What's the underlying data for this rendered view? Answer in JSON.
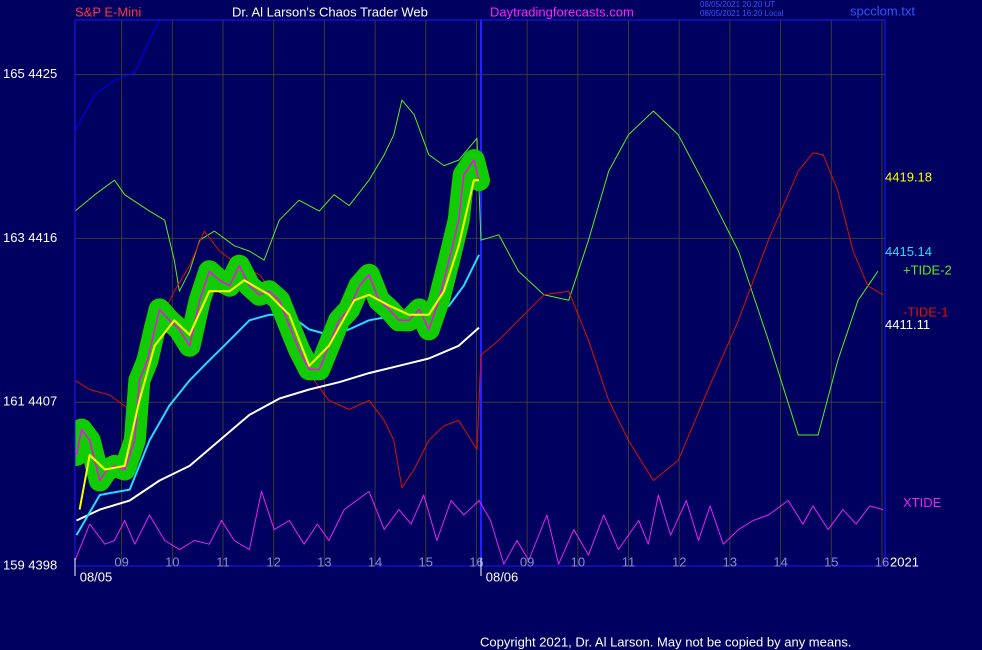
{
  "chart_data": {
    "type": "line",
    "header": {
      "symbol": "S&P E-Mini",
      "title": "Dr. Al Larson's Chaos Trader Web",
      "site": "Daytradingforecasts.com",
      "time_ut": "08/05/2021 20:20 UT",
      "time_local": "08/05/2021 16:20 Local",
      "file": "spcclom.txt"
    },
    "copyright": "Copyright 2021, Dr. Al Larson. May not be copied by any means.",
    "year_label": "2021",
    "ylim": [
      4398,
      4428
    ],
    "yticks": [
      {
        "value": 4398,
        "label": "159 4398"
      },
      {
        "value": 4407,
        "label": "161 4407"
      },
      {
        "value": 4416,
        "label": "163 4416"
      },
      {
        "value": 4425,
        "label": "165 4425"
      }
    ],
    "xlim": [
      0.08,
      16.06
    ],
    "xticks": [
      {
        "value": 1,
        "label": "09"
      },
      {
        "value": 2,
        "label": "10"
      },
      {
        "value": 3,
        "label": "11"
      },
      {
        "value": 4,
        "label": "12"
      },
      {
        "value": 5,
        "label": "13"
      },
      {
        "value": 6,
        "label": "14"
      },
      {
        "value": 7,
        "label": "15"
      },
      {
        "value": 8,
        "label": "16"
      },
      {
        "value": 9,
        "label": "09"
      },
      {
        "value": 10,
        "label": "10"
      },
      {
        "value": 11,
        "label": "11"
      },
      {
        "value": 12,
        "label": "12"
      },
      {
        "value": 13,
        "label": "13"
      },
      {
        "value": 14,
        "label": "14"
      },
      {
        "value": 15,
        "label": "15"
      },
      {
        "value": 16,
        "label": "16"
      }
    ],
    "date_labels": [
      {
        "value": 0.08,
        "label": "08/05"
      },
      {
        "value": 8.09,
        "label": "08/06"
      }
    ],
    "divider_x": 8.09,
    "grid": true,
    "series": [
      {
        "name": "+TIDE-2",
        "color": "#55ee22",
        "x": [
          0.08,
          0.47,
          0.86,
          1.06,
          1.55,
          1.85,
          2.04,
          2.14,
          2.34,
          2.54,
          2.83,
          3.22,
          3.52,
          3.81,
          4.11,
          4.5,
          4.9,
          5.19,
          5.49,
          5.88,
          6.18,
          6.37,
          6.53,
          6.77,
          7.06,
          7.36,
          7.65,
          8.01,
          8.09,
          8.44,
          8.83,
          9.33,
          9.82,
          10.21,
          10.61,
          11.0,
          11.49,
          11.98,
          12.57,
          13.17,
          13.76,
          14.35,
          14.74,
          15.13,
          15.53,
          15.92
        ],
        "values": [
          4417.5,
          4418.4,
          4419.2,
          4418.4,
          4417.5,
          4417.0,
          4414.8,
          4413.1,
          4414.2,
          4415.9,
          4416.4,
          4415.6,
          4415.3,
          4414.8,
          4417.0,
          4418.1,
          4417.5,
          4418.4,
          4417.8,
          4419.2,
          4420.6,
          4421.7,
          4423.6,
          4422.8,
          4420.6,
          4420.0,
          4420.3,
          4421.5,
          4415.9,
          4416.2,
          4414.2,
          4412.9,
          4412.6,
          4415.9,
          4419.7,
          4421.7,
          4423.0,
          4421.7,
          4418.6,
          4415.3,
          4410.4,
          4405.2,
          4405.2,
          4409.3,
          4412.6,
          4414.2
        ]
      },
      {
        "name": "-TIDE-1",
        "color": "#dd1100",
        "x": [
          0.08,
          0.37,
          0.76,
          1.16,
          1.45,
          1.75,
          2.04,
          2.34,
          2.63,
          2.93,
          3.32,
          3.72,
          4.11,
          4.5,
          4.8,
          5.09,
          5.49,
          5.88,
          6.18,
          6.37,
          6.53,
          6.77,
          7.06,
          7.36,
          7.65,
          8.01,
          8.09,
          8.44,
          8.83,
          9.33,
          9.82,
          10.21,
          10.61,
          11.0,
          11.49,
          11.98,
          12.57,
          13.17,
          13.76,
          14.35,
          14.64,
          14.84,
          15.13,
          15.43,
          15.72,
          16.02
        ],
        "values": [
          4408.2,
          4407.7,
          4407.4,
          4406.6,
          4408.2,
          4411.5,
          4413.1,
          4414.5,
          4416.4,
          4415.3,
          4414.5,
          4414.0,
          4412.6,
          4411.0,
          4408.2,
          4407.1,
          4406.6,
          4407.1,
          4406.0,
          4404.9,
          4402.3,
          4403.3,
          4404.9,
          4405.7,
          4406.0,
          4404.4,
          4409.6,
          4410.4,
          4411.5,
          4412.9,
          4413.1,
          4410.4,
          4407.1,
          4404.9,
          4402.7,
          4403.8,
          4407.7,
          4411.5,
          4415.9,
          4419.7,
          4420.7,
          4420.6,
          4418.6,
          4415.3,
          4413.4,
          4412.9
        ]
      },
      {
        "color": "#0000ff",
        "x": [
          0.08,
          0.47,
          0.86,
          1.26,
          1.55,
          1.75
        ],
        "values": [
          4421.9,
          4423.9,
          4424.7,
          4425.1,
          4426.9,
          4428.0
        ]
      },
      {
        "name": "XTIDE",
        "color": "#ee22ee",
        "x": [
          0.08,
          0.37,
          0.67,
          0.86,
          1.06,
          1.26,
          1.55,
          1.85,
          2.14,
          2.44,
          2.73,
          2.97,
          3.22,
          3.52,
          3.76,
          4.01,
          4.31,
          4.6,
          4.86,
          5.09,
          5.39,
          5.88,
          6.18,
          6.47,
          6.71,
          6.96,
          7.22,
          7.5,
          7.75,
          8.05,
          8.28,
          8.54,
          8.8,
          9.03,
          9.39,
          9.62,
          9.92,
          10.21,
          10.51,
          10.8,
          11.2,
          11.39,
          11.59,
          11.83,
          12.14,
          12.38,
          12.61,
          12.87,
          13.17,
          13.46,
          13.76,
          14.15,
          14.44,
          14.64,
          14.94,
          15.23,
          15.49,
          15.76,
          16.02
        ],
        "values": [
          4398.3,
          4400.3,
          4399.2,
          4399.4,
          4400.5,
          4399.2,
          4400.8,
          4399.4,
          4398.9,
          4399.4,
          4399.2,
          4400.5,
          4399.4,
          4398.9,
          4402.1,
          4400.0,
          4400.5,
          4399.2,
          4400.3,
          4399.4,
          4401.1,
          4402.1,
          4400.0,
          4401.1,
          4400.3,
          4401.9,
          4399.4,
          4401.6,
          4400.8,
          4401.6,
          4400.5,
          4398.1,
          4399.4,
          4398.3,
          4400.8,
          4398.1,
          4400.0,
          4398.6,
          4400.8,
          4398.9,
          4400.5,
          4399.2,
          4401.9,
          4399.7,
          4401.6,
          4399.4,
          4401.3,
          4399.2,
          4400.0,
          4400.5,
          4400.8,
          4401.6,
          4400.3,
          4401.3,
          4400.0,
          4401.1,
          4400.3,
          4401.3,
          4401.1
        ]
      },
      {
        "color": "#ffffff",
        "end_label": "4411.11",
        "x": [
          0.11,
          0.57,
          1.16,
          1.75,
          2.34,
          2.93,
          3.52,
          4.11,
          4.7,
          5.29,
          5.88,
          6.47,
          7.06,
          7.65,
          8.05
        ],
        "values": [
          4400.5,
          4401.1,
          4401.6,
          4402.7,
          4403.5,
          4404.9,
          4406.3,
          4407.2,
          4407.7,
          4408.1,
          4408.6,
          4409.0,
          4409.4,
          4410.1,
          4411.1
        ]
      },
      {
        "color": "#22ddff",
        "end_label": "4415.14",
        "x": [
          0.11,
          0.57,
          1.16,
          1.55,
          1.94,
          2.34,
          2.73,
          3.13,
          3.52,
          3.91,
          4.31,
          4.7,
          5.09,
          5.49,
          5.88,
          6.47,
          7.06,
          7.46,
          7.75,
          8.05
        ],
        "values": [
          4399.7,
          4401.9,
          4402.2,
          4404.9,
          4406.8,
          4408.2,
          4409.3,
          4410.4,
          4411.5,
          4411.8,
          4411.8,
          4411.0,
          4410.7,
          4411.0,
          4411.5,
          4411.8,
          4411.6,
          4412.3,
          4413.4,
          4415.1
        ]
      },
      {
        "color": "#ff00ff",
        "glow": "#11cc00",
        "x": [
          0.11,
          0.21,
          0.37,
          0.57,
          0.72,
          0.86,
          1.06,
          1.26,
          1.35,
          1.51,
          1.65,
          1.75,
          1.94,
          2.14,
          2.34,
          2.54,
          2.73,
          2.93,
          3.13,
          3.32,
          3.52,
          3.72,
          3.91,
          4.11,
          4.31,
          4.5,
          4.7,
          4.9,
          5.09,
          5.29,
          5.49,
          5.69,
          5.88,
          6.08,
          6.28,
          6.47,
          6.67,
          6.87,
          7.06,
          7.26,
          7.46,
          7.65,
          7.75,
          7.95,
          8.05
        ],
        "values": [
          4404.1,
          4405.5,
          4404.9,
          4402.7,
          4403.3,
          4403.5,
          4403.3,
          4404.9,
          4408.2,
          4409.3,
          4411.0,
          4412.1,
          4411.5,
          4411.0,
          4410.1,
          4412.6,
          4414.2,
          4413.7,
          4413.4,
          4414.5,
          4413.4,
          4412.9,
          4413.1,
          4412.6,
          4411.2,
          4409.9,
          4408.8,
          4408.8,
          4410.1,
          4411.5,
          4412.1,
          4413.4,
          4414.0,
          4412.6,
          4412.1,
          4411.5,
          4411.5,
          4412.1,
          4411.0,
          4412.6,
          4414.8,
          4417.0,
          4419.5,
          4420.3,
          4419.2
        ]
      },
      {
        "color": "#ffff00",
        "end_label": "4419.18",
        "x": [
          0.17,
          0.37,
          0.67,
          1.06,
          1.35,
          1.65,
          2.04,
          2.34,
          2.73,
          3.13,
          3.42,
          3.91,
          4.31,
          4.7,
          5.09,
          5.59,
          5.88,
          6.28,
          6.67,
          7.06,
          7.36,
          7.65,
          7.95,
          8.05
        ],
        "values": [
          4401.1,
          4404.1,
          4403.3,
          4403.5,
          4407.1,
          4410.1,
          4411.5,
          4410.7,
          4413.1,
          4413.1,
          4413.7,
          4412.9,
          4411.8,
          4409.0,
          4410.1,
          4412.6,
          4412.9,
          4412.3,
          4411.8,
          4411.8,
          4413.1,
          4415.6,
          4419.2,
          4419.2
        ]
      }
    ]
  }
}
